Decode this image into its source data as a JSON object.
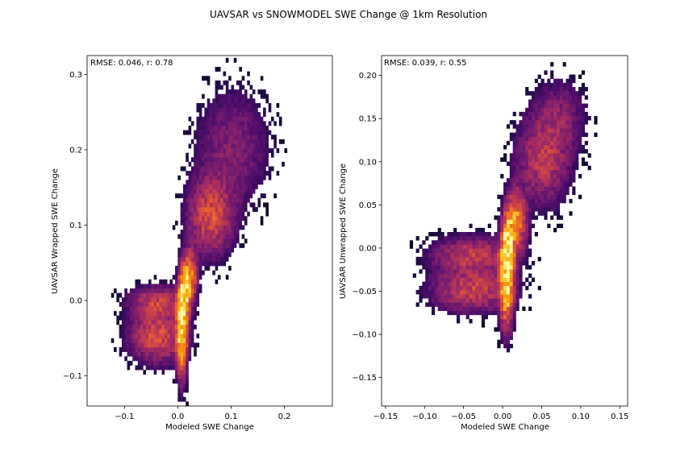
{
  "figure": {
    "title": "UAVSAR vs SNOWMODEL SWE Change @ 1km Resolution"
  },
  "colormap": {
    "name": "inferno",
    "stops": [
      "#000004",
      "#1b0c41",
      "#4a0c6b",
      "#781c6d",
      "#a52c60",
      "#cf4446",
      "#ed6925",
      "#fb9b06",
      "#f7d13d",
      "#fcffa4"
    ]
  },
  "chart_data": [
    {
      "type": "heatmap",
      "annotation": "RMSE: 0.046, r: 0.78",
      "xlabel": "Modeled SWE Change",
      "ylabel": "UAVSAR Wrapped SWE Change",
      "xlim": [
        -0.17,
        0.29
      ],
      "ylim": [
        -0.14,
        0.325
      ],
      "xticks": [
        -0.1,
        0.0,
        0.1,
        0.2
      ],
      "xtick_labels": [
        "−0.1",
        "0.0",
        "0.1",
        "0.2"
      ],
      "yticks": [
        -0.1,
        0.0,
        0.1,
        0.2,
        0.3
      ],
      "ytick_labels": [
        "−0.1",
        "0.0",
        "0.1",
        "0.2",
        "0.3"
      ],
      "bin_width": 0.005,
      "density_clusters": [
        {
          "cx": 0.005,
          "cy": -0.04,
          "sx": 0.006,
          "sy": 0.035,
          "weight": 1.0
        },
        {
          "cx": 0.01,
          "cy": 0.005,
          "sx": 0.006,
          "sy": 0.02,
          "weight": 1.0
        },
        {
          "cx": 0.02,
          "cy": 0.03,
          "sx": 0.008,
          "sy": 0.02,
          "weight": 0.6
        },
        {
          "cx": -0.04,
          "cy": -0.05,
          "sx": 0.03,
          "sy": 0.02,
          "weight": 0.35
        },
        {
          "cx": -0.04,
          "cy": -0.005,
          "sx": 0.03,
          "sy": 0.012,
          "weight": 0.3
        },
        {
          "cx": 0.06,
          "cy": 0.11,
          "sx": 0.025,
          "sy": 0.03,
          "weight": 0.35
        },
        {
          "cx": 0.1,
          "cy": 0.2,
          "sx": 0.04,
          "sy": 0.045,
          "weight": 0.12
        }
      ]
    },
    {
      "type": "heatmap",
      "annotation": "RMSE: 0.039, r: 0.55",
      "xlabel": "Modeled SWE Change",
      "ylabel": "UAVSAR Unwrapped SWE Change",
      "xlim": [
        -0.155,
        0.16
      ],
      "ylim": [
        -0.183,
        0.223
      ],
      "xticks": [
        -0.15,
        -0.1,
        -0.05,
        0.0,
        0.05,
        0.1,
        0.15
      ],
      "xtick_labels": [
        "−0.15",
        "−0.10",
        "−0.05",
        "0.00",
        "0.05",
        "0.10",
        "0.15"
      ],
      "yticks": [
        -0.15,
        -0.1,
        -0.05,
        0.0,
        0.05,
        0.1,
        0.15,
        0.2
      ],
      "ytick_labels": [
        "−0.15",
        "−0.10",
        "−0.05",
        "0.00",
        "0.05",
        "0.10",
        "0.15",
        "0.20"
      ],
      "bin_width": 0.004,
      "density_clusters": [
        {
          "cx": 0.003,
          "cy": -0.04,
          "sx": 0.005,
          "sy": 0.03,
          "weight": 1.0
        },
        {
          "cx": 0.005,
          "cy": 0.0,
          "sx": 0.005,
          "sy": 0.02,
          "weight": 0.9
        },
        {
          "cx": 0.015,
          "cy": 0.03,
          "sx": 0.008,
          "sy": 0.02,
          "weight": 0.6
        },
        {
          "cx": -0.04,
          "cy": -0.05,
          "sx": 0.03,
          "sy": 0.015,
          "weight": 0.3
        },
        {
          "cx": -0.04,
          "cy": -0.01,
          "sx": 0.03,
          "sy": 0.012,
          "weight": 0.28
        },
        {
          "cx": 0.05,
          "cy": 0.1,
          "sx": 0.02,
          "sy": 0.03,
          "weight": 0.25
        },
        {
          "cx": 0.07,
          "cy": 0.15,
          "sx": 0.02,
          "sy": 0.025,
          "weight": 0.12
        }
      ]
    }
  ]
}
